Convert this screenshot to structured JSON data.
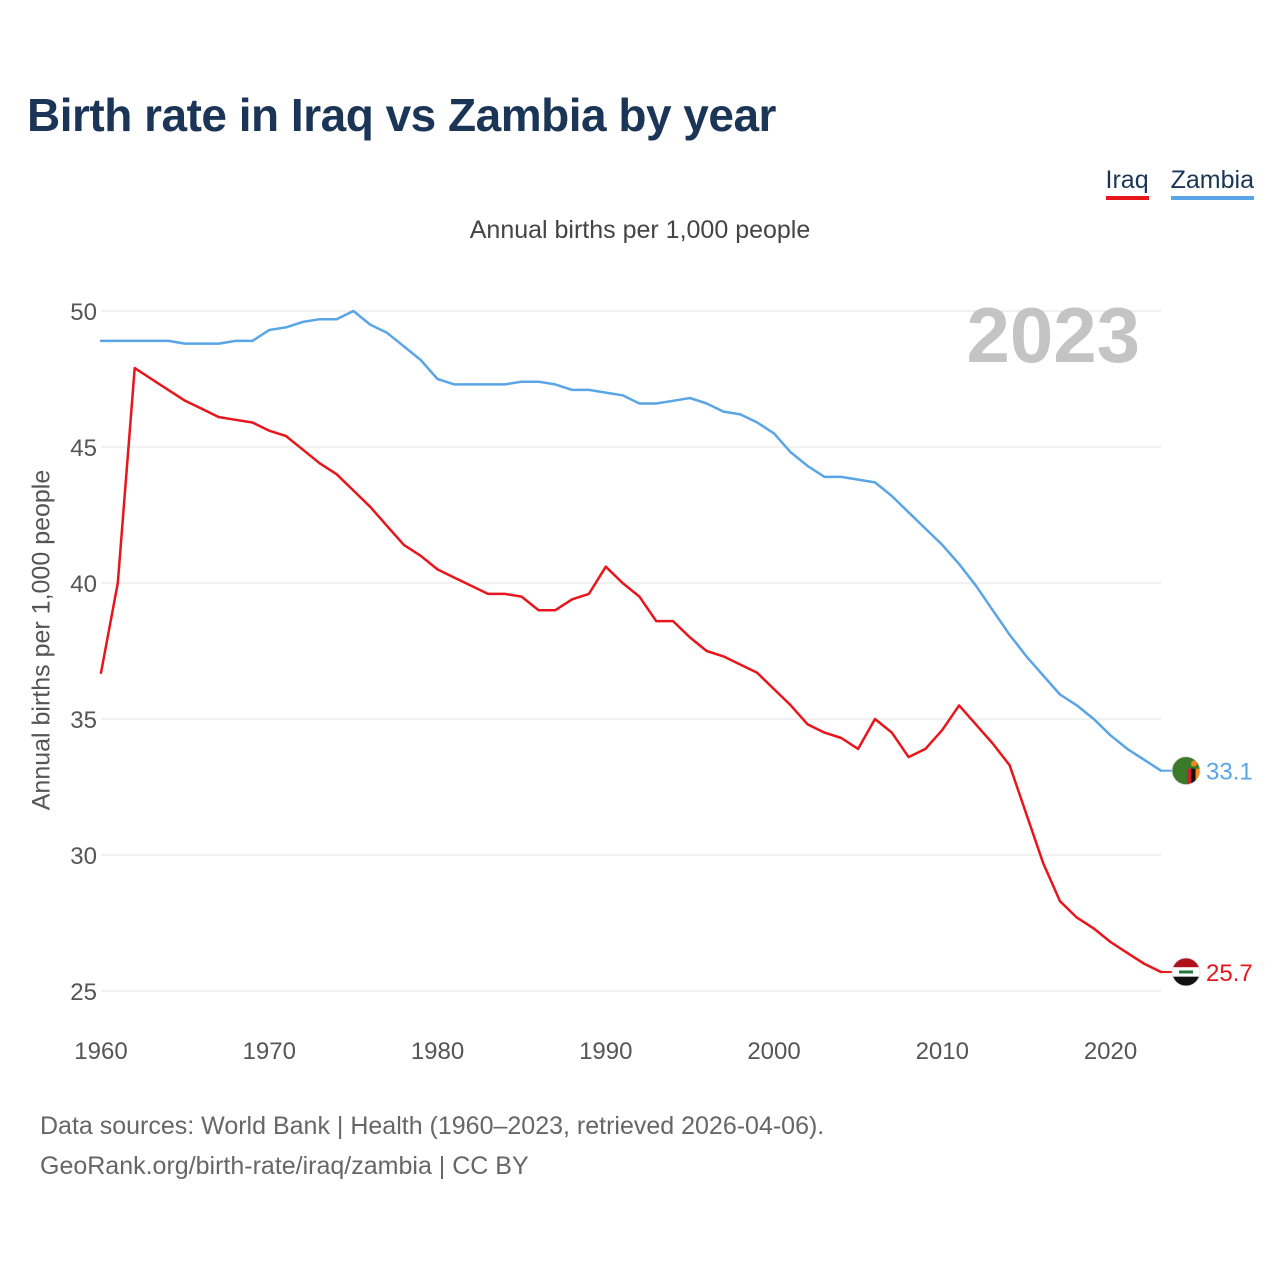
{
  "title": "Birth rate in Iraq vs Zambia by year",
  "subtitle": "Annual births per 1,000 people",
  "year_label": "2023",
  "legend": [
    {
      "name": "Iraq",
      "color": "#e8161b"
    },
    {
      "name": "Zambia",
      "color": "#5aa5e6"
    }
  ],
  "footer": {
    "line1": "Data sources: World Bank | Health (1960–2023, retrieved 2026-04-06).",
    "line2": "GeoRank.org/birth-rate/iraq/zambia | CC BY"
  },
  "chart_data": {
    "type": "line",
    "title": "Birth rate in Iraq vs Zambia by year",
    "xlabel": "",
    "ylabel": "Annual births per 1,000 people",
    "xlim": [
      1960,
      2023
    ],
    "ylim": [
      25,
      50
    ],
    "xticks": [
      1960,
      1970,
      1980,
      1990,
      2000,
      2010,
      2020
    ],
    "yticks": [
      25,
      30,
      35,
      40,
      45,
      50
    ],
    "grid": true,
    "legend_position": "top-right",
    "x": [
      1960,
      1961,
      1962,
      1963,
      1964,
      1965,
      1966,
      1967,
      1968,
      1969,
      1970,
      1971,
      1972,
      1973,
      1974,
      1975,
      1976,
      1977,
      1978,
      1979,
      1980,
      1981,
      1982,
      1983,
      1984,
      1985,
      1986,
      1987,
      1988,
      1989,
      1990,
      1991,
      1992,
      1993,
      1994,
      1995,
      1996,
      1997,
      1998,
      1999,
      2000,
      2001,
      2002,
      2003,
      2004,
      2005,
      2006,
      2007,
      2008,
      2009,
      2010,
      2011,
      2012,
      2013,
      2014,
      2015,
      2016,
      2017,
      2018,
      2019,
      2020,
      2021,
      2022,
      2023
    ],
    "series": [
      {
        "name": "Iraq",
        "color": "#e8161b",
        "end_label": "25.7",
        "flag": "iraq-flag",
        "values": [
          36.7,
          40.0,
          47.9,
          47.5,
          47.1,
          46.7,
          46.4,
          46.1,
          46.0,
          45.9,
          45.6,
          45.4,
          44.9,
          44.4,
          44.0,
          43.4,
          42.8,
          42.1,
          41.4,
          41.0,
          40.5,
          40.2,
          39.9,
          39.6,
          39.6,
          39.5,
          39.0,
          39.0,
          39.4,
          39.6,
          40.6,
          40.0,
          39.5,
          38.6,
          38.6,
          38.0,
          37.5,
          37.3,
          37.0,
          36.7,
          36.1,
          35.5,
          34.8,
          34.5,
          34.3,
          33.9,
          35.0,
          34.5,
          33.6,
          33.9,
          34.6,
          35.5,
          34.8,
          34.1,
          33.3,
          31.5,
          29.7,
          28.3,
          27.7,
          27.3,
          26.8,
          26.4,
          26.0,
          25.7
        ]
      },
      {
        "name": "Zambia",
        "color": "#5aa5e6",
        "end_label": "33.1",
        "flag": "zambia-flag",
        "values": [
          48.9,
          48.9,
          48.9,
          48.9,
          48.9,
          48.8,
          48.8,
          48.8,
          48.9,
          48.9,
          49.3,
          49.4,
          49.6,
          49.7,
          49.7,
          50.0,
          49.5,
          49.2,
          48.7,
          48.2,
          47.5,
          47.3,
          47.3,
          47.3,
          47.3,
          47.4,
          47.4,
          47.3,
          47.1,
          47.1,
          47.0,
          46.9,
          46.6,
          46.6,
          46.7,
          46.8,
          46.6,
          46.3,
          46.2,
          45.9,
          45.5,
          44.8,
          44.3,
          43.9,
          43.9,
          43.8,
          43.7,
          43.2,
          42.6,
          42.0,
          41.4,
          40.7,
          39.9,
          39.0,
          38.1,
          37.3,
          36.6,
          35.9,
          35.5,
          35.0,
          34.4,
          33.9,
          33.5,
          33.1
        ]
      }
    ]
  }
}
